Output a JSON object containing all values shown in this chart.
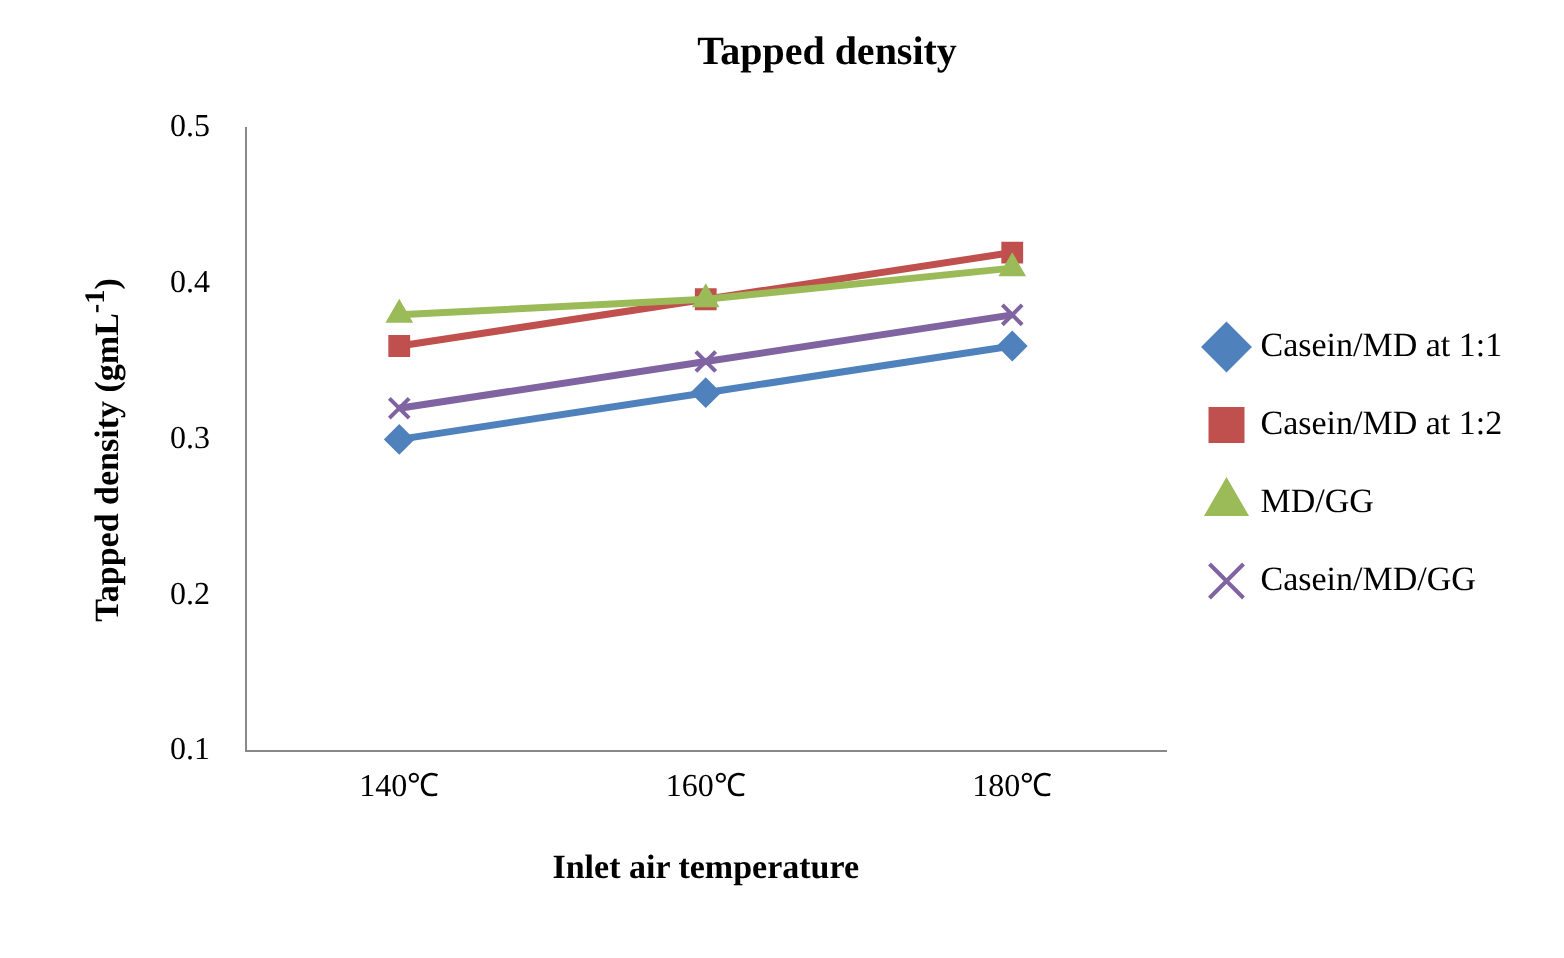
{
  "chart_data": {
    "type": "line",
    "title": "Tapped density",
    "xlabel": "Inlet air temperature",
    "ylabel": "Tapped density (gmL$^{-1}$)",
    "categories": [
      "140℃",
      "160℃",
      "180℃"
    ],
    "series": [
      {
        "name": "Casein/MD at 1:1",
        "color": "#4f81bd",
        "marker": "diamond",
        "values": [
          0.3,
          0.33,
          0.36
        ]
      },
      {
        "name": "Casein/MD at 1:2",
        "color": "#c0504d",
        "marker": "square",
        "values": [
          0.36,
          0.39,
          0.42
        ]
      },
      {
        "name": "MD/GG",
        "color": "#9bbb59",
        "marker": "triangle",
        "values": [
          0.38,
          0.39,
          0.41
        ]
      },
      {
        "name": "Casein/MD/GG",
        "color": "#8064a2",
        "marker": "cross",
        "values": [
          0.32,
          0.35,
          0.38
        ]
      }
    ],
    "ylim": [
      0.1,
      0.5
    ],
    "yticks": [
      0.1,
      0.2,
      0.3,
      0.4,
      0.5
    ],
    "grid": false,
    "legend": "right",
    "line_style": "solid"
  }
}
